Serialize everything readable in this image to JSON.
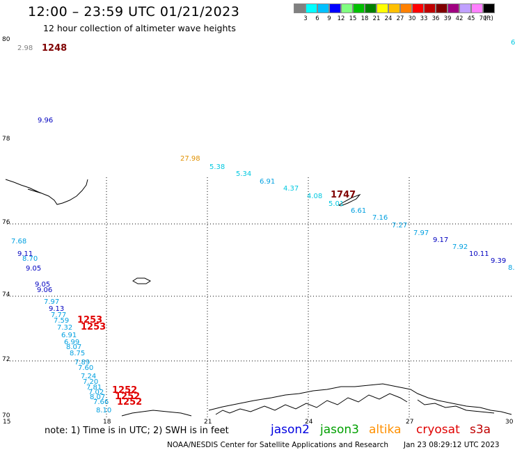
{
  "header": {
    "title": "12:00 – 23:59 UTC 01/21/2023",
    "subtitle": "12 hour collection of altimeter wave heights"
  },
  "colorbar": {
    "colors": [
      "#808080",
      "#00ffff",
      "#00c0ff",
      "#0000ff",
      "#80ff80",
      "#00c000",
      "#008000",
      "#ffff00",
      "#ffc000",
      "#ff8000",
      "#ff0000",
      "#c00000",
      "#800000",
      "#a00080",
      "#c0a0ff",
      "#ff80ff",
      "#000000"
    ],
    "labels": [
      "3",
      "6",
      "9",
      "12",
      "15",
      "18",
      "21",
      "24",
      "27",
      "30",
      "33",
      "36",
      "39",
      "42",
      "45",
      "70"
    ],
    "unit": "(ft)"
  },
  "map": {
    "lon_ticks": [
      "15",
      "18",
      "21",
      "24",
      "27",
      "30"
    ],
    "lat_ticks": [
      "80",
      "78",
      "76",
      "74",
      "72",
      "70"
    ],
    "observations": [
      {
        "text": "2.98",
        "color": "#808080"
      },
      {
        "text": "1248",
        "color": "#800000",
        "big": true
      },
      {
        "text": "9.96",
        "color": "#0000c0"
      },
      {
        "text": "27.98",
        "color": "#e09000"
      },
      {
        "text": "5.38",
        "color": "#00c8e0"
      },
      {
        "text": "5.34",
        "color": "#00c8e0"
      },
      {
        "text": "6.91",
        "color": "#00a0e0"
      },
      {
        "text": "4.37",
        "color": "#00c8e0"
      },
      {
        "text": "4.08",
        "color": "#00c8e0"
      },
      {
        "text": "1747",
        "color": "#800000",
        "big": true
      },
      {
        "text": "5.01",
        "color": "#00c8e0"
      },
      {
        "text": "6.61",
        "color": "#00a0e0"
      },
      {
        "text": "7.16",
        "color": "#00a0e0"
      },
      {
        "text": "7.27",
        "color": "#00a0e0"
      },
      {
        "text": "7.97",
        "color": "#00a0e0"
      },
      {
        "text": "9.17",
        "color": "#0000c0"
      },
      {
        "text": "7.92",
        "color": "#00a0e0"
      },
      {
        "text": "10.11",
        "color": "#0000c0"
      },
      {
        "text": "9.39",
        "color": "#0000c0"
      },
      {
        "text": "8.",
        "color": "#00a0e0"
      },
      {
        "text": "6",
        "color": "#00c8e0"
      },
      {
        "text": "7.68",
        "color": "#00a0e0"
      },
      {
        "text": "9.11",
        "color": "#0000c0"
      },
      {
        "text": "8.70",
        "color": "#00a0e0"
      },
      {
        "text": "9.05",
        "color": "#0000c0"
      },
      {
        "text": "9.05",
        "color": "#0000c0"
      },
      {
        "text": "9.06",
        "color": "#0000c0"
      },
      {
        "text": "7.97",
        "color": "#00a0e0"
      },
      {
        "text": "9.13",
        "color": "#0000c0"
      },
      {
        "text": "7.77",
        "color": "#00a0e0"
      },
      {
        "text": "7.59",
        "color": "#00a0e0"
      },
      {
        "text": "7.32",
        "color": "#00a0e0"
      },
      {
        "text": "6.91",
        "color": "#00a0e0"
      },
      {
        "text": "6.99",
        "color": "#00a0e0"
      },
      {
        "text": "8.07",
        "color": "#00a0e0"
      },
      {
        "text": "8.75",
        "color": "#00a0e0"
      },
      {
        "text": "7.89",
        "color": "#00a0e0"
      },
      {
        "text": "7.60",
        "color": "#00a0e0"
      },
      {
        "text": "7.24",
        "color": "#00a0e0"
      },
      {
        "text": "7.20",
        "color": "#00a0e0"
      },
      {
        "text": "7.81",
        "color": "#00a0e0"
      },
      {
        "text": "7.02",
        "color": "#00a0e0"
      },
      {
        "text": "8.07",
        "color": "#00a0e0"
      },
      {
        "text": "7.66",
        "color": "#00a0e0"
      },
      {
        "text": "8.10",
        "color": "#00a0e0"
      },
      {
        "text": "1253",
        "color": "#e00000",
        "big": true
      },
      {
        "text": "1253",
        "color": "#e00000",
        "big": true
      },
      {
        "text": "1252",
        "color": "#e00000",
        "big": true
      },
      {
        "text": "1252",
        "color": "#e00000",
        "big": true
      },
      {
        "text": "1252",
        "color": "#e00000",
        "big": true
      }
    ]
  },
  "footer": {
    "note": "note: 1) Time is in UTC; 2) SWH is in feet",
    "legend": [
      {
        "label": "jason2",
        "color": "#0000e0"
      },
      {
        "label": "jason3",
        "color": "#00a000"
      },
      {
        "label": "altika",
        "color": "#ff9000"
      },
      {
        "label": "cryosat",
        "color": "#e00000"
      },
      {
        "label": "s3a",
        "color": "#c00000"
      }
    ],
    "credit": "NOAA/NESDIS Center for Satellite Applications and Research",
    "timestamp": "Jan 23 08:29:12 UTC 2023"
  }
}
